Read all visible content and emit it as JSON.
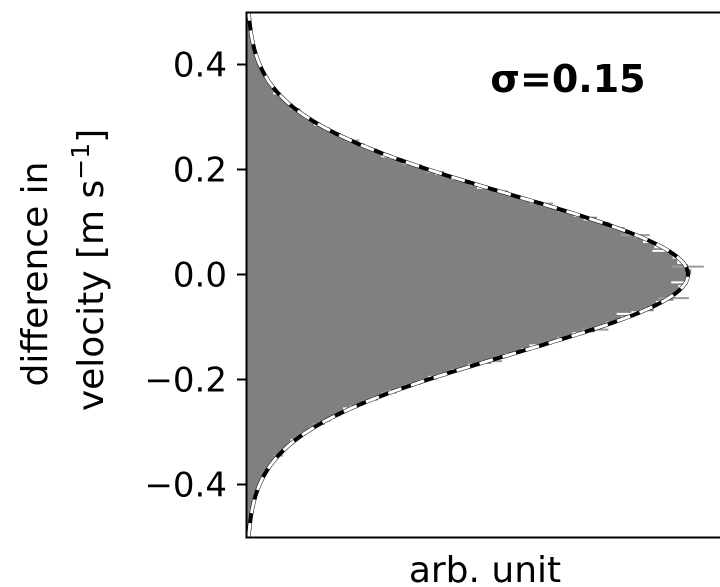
{
  "chart_data": {
    "type": "area",
    "orientation": "horizontal histogram",
    "xlabel": "arb. unit",
    "ylabel_line1": "difference in",
    "ylabel_line2_text": "velocity [m s",
    "ylabel_line2_sup": "−1",
    "ylabel_line2_close": "]",
    "annotation": "σ=0.15",
    "ylim": [
      -0.5,
      0.5
    ],
    "yticks": [
      {
        "value": -0.4,
        "label": "−0.4"
      },
      {
        "value": -0.2,
        "label": "−0.2"
      },
      {
        "value": 0.0,
        "label": "0.0"
      },
      {
        "value": 0.2,
        "label": "0.2"
      },
      {
        "value": 0.4,
        "label": "0.4"
      }
    ],
    "series": [
      {
        "kind": "histogram",
        "distribution": "gaussian",
        "mean": 0.0,
        "sigma": 0.15,
        "bins": 100,
        "color": "#808080"
      },
      {
        "kind": "fit",
        "distribution": "gaussian",
        "mean": 0.0,
        "sigma": 0.15,
        "color": "#000000",
        "dash_color": "#ffffff",
        "style": "dashed"
      }
    ],
    "grid": false
  }
}
